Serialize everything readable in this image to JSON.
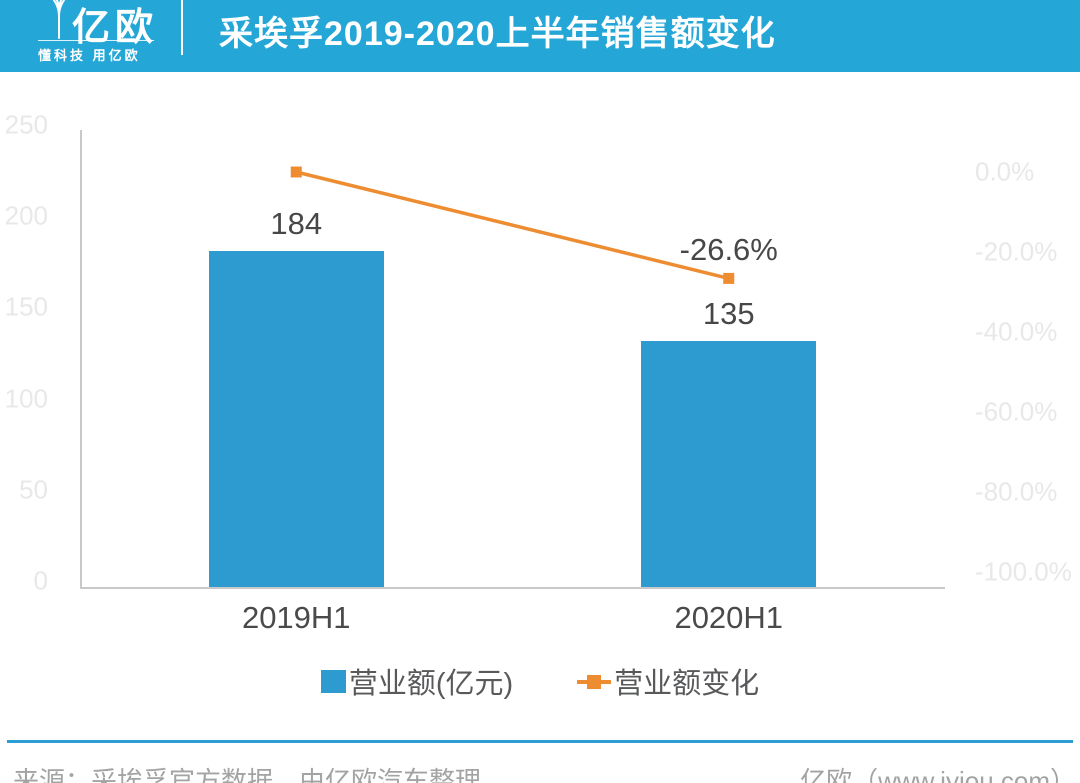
{
  "header": {
    "logo": {
      "name": "亿欧",
      "tagline": "懂科技 用亿欧"
    },
    "title": "采埃孚2019-2020上半年销售额变化"
  },
  "chart_data": {
    "type": "combo-bar-line",
    "title": "采埃孚2019-2020上半年销售额变化",
    "categories": [
      "2019H1",
      "2020H1"
    ],
    "series": [
      {
        "name": "营业额(亿元)",
        "type": "bar",
        "axis": "left",
        "values": [
          184,
          135
        ],
        "data_labels": [
          "184",
          "135"
        ],
        "color": "#2D9BD0"
      },
      {
        "name": "营业额变化",
        "type": "line",
        "axis": "right",
        "values": [
          0.0,
          -26.6
        ],
        "data_labels": [
          "",
          "-26.6%"
        ],
        "color": "#EE8C32"
      }
    ],
    "left_axis": {
      "min": 0,
      "max": 250,
      "ticks": [
        "250",
        "200",
        "150",
        "100",
        "50",
        "0"
      ]
    },
    "right_axis": {
      "min": -100,
      "max": 0,
      "ticks": [
        "0.0%",
        "-20.0%",
        "-40.0%",
        "-60.0%",
        "-80.0%",
        "-100.0%"
      ]
    },
    "grid": false,
    "legend_position": "bottom",
    "colors": {
      "axis_line": "#C9C9C9",
      "tick_text": "#E8E8E8",
      "label_text": "#474747",
      "header_bg": "#24A7D6",
      "footer_line": "#2E9CD4"
    }
  },
  "legend": {
    "items": [
      {
        "label": "营业额(亿元)",
        "swatch": "square",
        "color": "#2D9BD0"
      },
      {
        "label": "营业额变化",
        "swatch": "line-marker",
        "color": "#EE8C32"
      }
    ]
  },
  "footer": {
    "source": "来源：采埃孚官方数据，由亿欧汽车整理",
    "site": "亿欧（www.iyiou.com）"
  }
}
